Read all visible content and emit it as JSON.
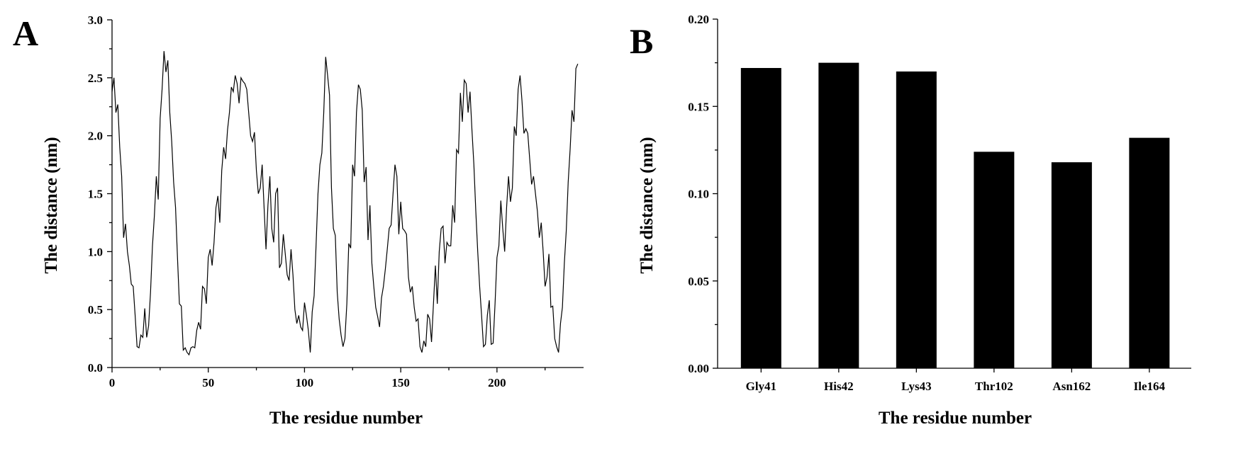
{
  "panels": [
    {
      "letter": "A"
    },
    {
      "letter": "B"
    }
  ],
  "chart_data": [
    {
      "type": "line",
      "panel": "A",
      "xlabel": "The residue number",
      "ylabel": "The distance (nm)",
      "xlim": [
        0,
        245
      ],
      "ylim": [
        0,
        3.0
      ],
      "xticks": [
        0,
        50,
        100,
        150,
        200
      ],
      "yticks": [
        0.0,
        0.5,
        1.0,
        1.5,
        2.0,
        2.5,
        3.0
      ],
      "x_start": 0,
      "y": [
        2.38,
        2.5,
        2.2,
        2.27,
        1.9,
        1.65,
        1.12,
        1.24,
        1.0,
        0.88,
        0.72,
        0.7,
        0.45,
        0.18,
        0.17,
        0.28,
        0.26,
        0.51,
        0.26,
        0.36,
        0.65,
        1.05,
        1.31,
        1.65,
        1.45,
        2.15,
        2.4,
        2.73,
        2.55,
        2.65,
        2.2,
        1.95,
        1.6,
        1.38,
        0.95,
        0.55,
        0.53,
        0.15,
        0.17,
        0.13,
        0.11,
        0.17,
        0.18,
        0.17,
        0.32,
        0.39,
        0.33,
        0.7,
        0.68,
        0.55,
        0.95,
        1.02,
        0.88,
        1.08,
        1.38,
        1.48,
        1.25,
        1.7,
        1.9,
        1.8,
        2.05,
        2.2,
        2.42,
        2.38,
        2.52,
        2.45,
        2.28,
        2.5,
        2.47,
        2.45,
        2.4,
        2.2,
        2.0,
        1.95,
        2.03,
        1.7,
        1.5,
        1.55,
        1.75,
        1.38,
        1.02,
        1.4,
        1.65,
        1.2,
        1.08,
        1.5,
        1.55,
        0.86,
        0.9,
        1.15,
        0.98,
        0.8,
        0.75,
        1.02,
        0.8,
        0.5,
        0.38,
        0.45,
        0.35,
        0.32,
        0.56,
        0.45,
        0.32,
        0.13,
        0.48,
        0.62,
        1.05,
        1.5,
        1.75,
        1.85,
        2.2,
        2.68,
        2.52,
        2.35,
        1.55,
        1.2,
        1.14,
        0.65,
        0.42,
        0.28,
        0.18,
        0.25,
        0.55,
        1.07,
        1.03,
        1.75,
        1.65,
        2.2,
        2.44,
        2.4,
        2.22,
        1.6,
        1.73,
        1.1,
        1.4,
        0.9,
        0.7,
        0.52,
        0.44,
        0.35,
        0.6,
        0.7,
        0.85,
        1.02,
        1.2,
        1.23,
        1.5,
        1.75,
        1.65,
        1.15,
        1.43,
        1.2,
        1.18,
        1.15,
        0.78,
        0.65,
        0.7,
        0.52,
        0.4,
        0.42,
        0.18,
        0.13,
        0.23,
        0.18,
        0.46,
        0.42,
        0.22,
        0.55,
        0.88,
        0.55,
        1.0,
        1.2,
        1.22,
        0.9,
        1.08,
        1.05,
        1.05,
        1.4,
        1.25,
        1.88,
        1.85,
        2.37,
        2.12,
        2.48,
        2.45,
        2.2,
        2.38,
        2.05,
        1.75,
        1.35,
        1.0,
        0.7,
        0.45,
        0.18,
        0.2,
        0.45,
        0.58,
        0.2,
        0.21,
        0.55,
        0.95,
        1.05,
        1.44,
        1.2,
        1.0,
        1.38,
        1.65,
        1.43,
        1.55,
        2.08,
        2.0,
        2.4,
        2.52,
        2.3,
        2.02,
        2.06,
        2.02,
        1.8,
        1.58,
        1.65,
        1.5,
        1.35,
        1.12,
        1.25,
        1.0,
        0.7,
        0.78,
        0.98,
        0.52,
        0.53,
        0.25,
        0.18,
        0.13,
        0.38,
        0.52,
        0.9,
        1.18,
        1.6,
        1.88,
        2.22,
        2.12,
        2.58,
        2.62
      ]
    },
    {
      "type": "bar",
      "panel": "B",
      "xlabel": "The residue number",
      "ylabel": "The distance (nm)",
      "ylim": [
        0,
        0.2
      ],
      "yticks": [
        "0.00",
        "0.05",
        "0.10",
        "0.15",
        "0.20"
      ],
      "categories": [
        "Gly41",
        "His42",
        "Lys43",
        "Thr102",
        "Asn162",
        "Ile164"
      ],
      "values": [
        0.172,
        0.175,
        0.17,
        0.124,
        0.118,
        0.132
      ]
    }
  ]
}
